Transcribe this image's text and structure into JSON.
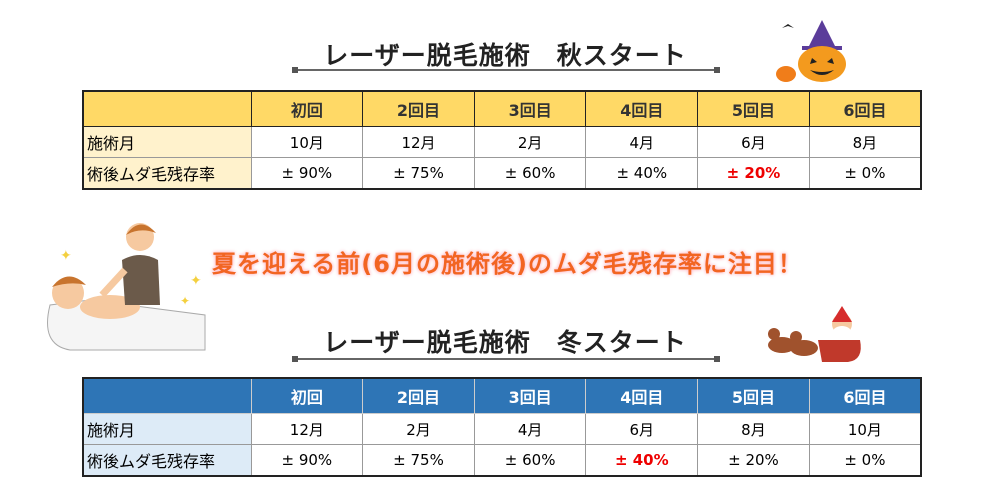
{
  "autumn": {
    "title": "レーザー脱毛施術　秋スタート",
    "headers": [
      "",
      "初回",
      "2回目",
      "3回目",
      "4回目",
      "5回目",
      "6回目"
    ],
    "row_month_label": "施術月",
    "months": [
      "10月",
      "12月",
      "2月",
      "4月",
      "6月",
      "8月"
    ],
    "row_rate_label": "術後ムダ毛残存率",
    "rates": [
      "± 90%",
      "± 75%",
      "± 60%",
      "± 40%",
      "± 20%",
      "± 0%"
    ],
    "highlight_index": 4
  },
  "catchphrase": "夏を迎える前(6月の施術後)のムダ毛残存率に注目！",
  "winter": {
    "title": "レーザー脱毛施術　冬スタート",
    "headers": [
      "",
      "初回",
      "2回目",
      "3回目",
      "4回目",
      "5回目",
      "6回目"
    ],
    "row_month_label": "施術月",
    "months": [
      "12月",
      "2月",
      "4月",
      "6月",
      "8月",
      "10月"
    ],
    "row_rate_label": "術後ムダ毛残存率",
    "rates": [
      "± 90%",
      "± 75%",
      "± 60%",
      "± 40%",
      "± 20%",
      "± 0%"
    ],
    "highlight_index": 3
  },
  "colors": {
    "autumn_header": "#ffd966",
    "winter_header": "#2e75b6",
    "highlight": "#ee0000",
    "catch": "#f26522"
  }
}
